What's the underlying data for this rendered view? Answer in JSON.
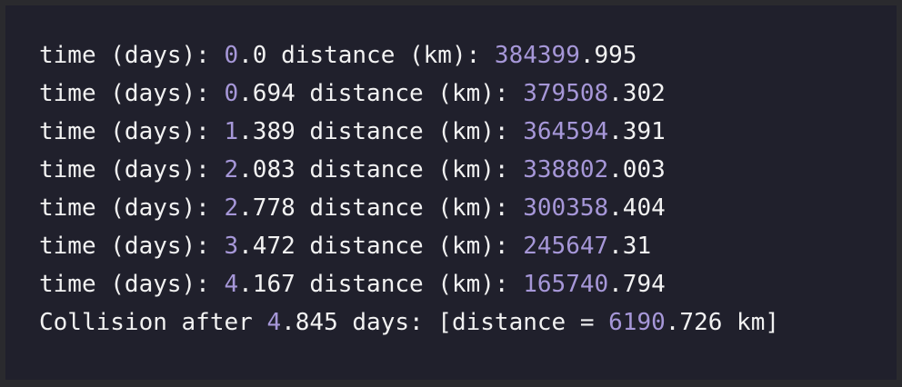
{
  "output": {
    "lines": [
      {
        "time_int": "0",
        "time_frac": ".0",
        "dist_int": "384399",
        "dist_frac": ".995"
      },
      {
        "time_int": "0",
        "time_frac": ".694",
        "dist_int": "379508",
        "dist_frac": ".302"
      },
      {
        "time_int": "1",
        "time_frac": ".389",
        "dist_int": "364594",
        "dist_frac": ".391"
      },
      {
        "time_int": "2",
        "time_frac": ".083",
        "dist_int": "338802",
        "dist_frac": ".003"
      },
      {
        "time_int": "2",
        "time_frac": ".778",
        "dist_int": "300358",
        "dist_frac": ".404"
      },
      {
        "time_int": "3",
        "time_frac": ".472",
        "dist_int": "245647",
        "dist_frac": ".31"
      },
      {
        "time_int": "4",
        "time_frac": ".167",
        "dist_int": "165740",
        "dist_frac": ".794"
      }
    ],
    "time_label": "time (days): ",
    "distance_label": " distance (km): ",
    "collision": {
      "prefix": "Collision after ",
      "days_int": "4",
      "days_frac": ".845",
      "middle": " days: [distance = ",
      "dist_int": "6190",
      "dist_frac": ".726",
      "suffix": " km]"
    }
  }
}
